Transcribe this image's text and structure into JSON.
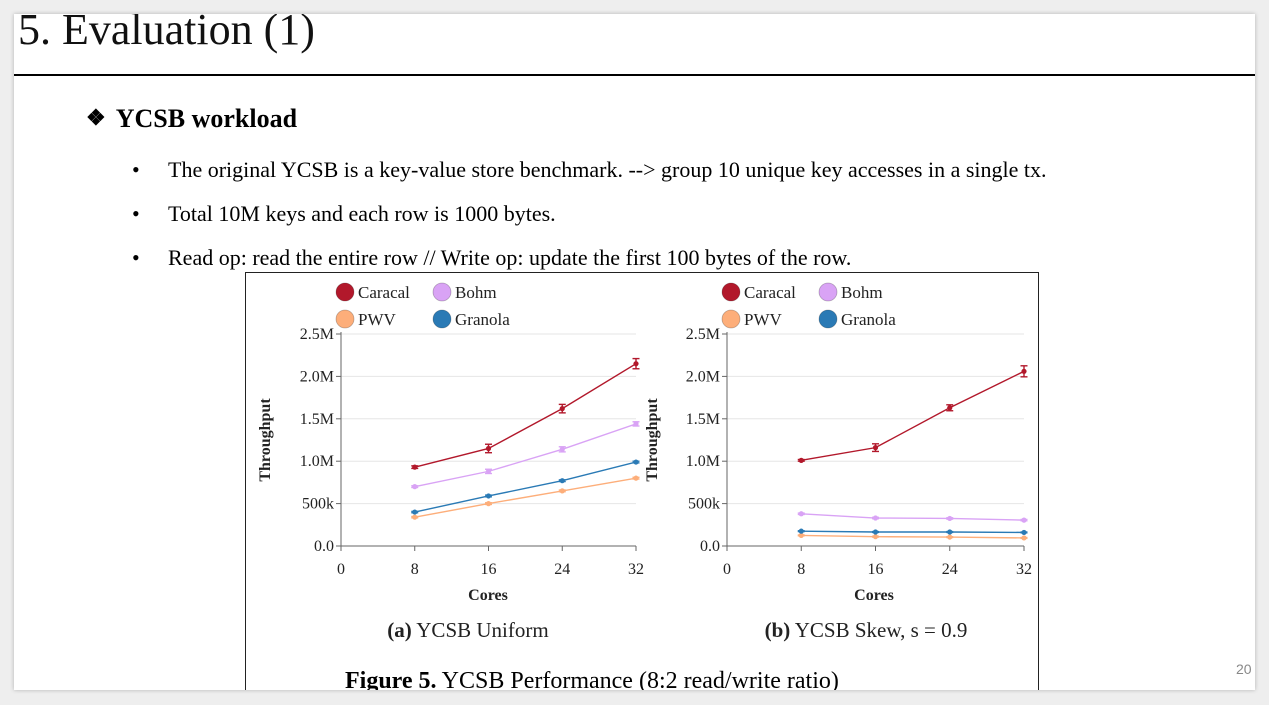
{
  "slide": {
    "title": "5. Evaluation (1)",
    "section": "YCSB workload",
    "section_icon": "diamond-bullet-icon",
    "bullets": [
      "The original YCSB is a key-value store benchmark. --> group 10 unique key accesses in a single tx.",
      "Total 10M keys and each row is 1000 bytes.",
      "Read op: read the entire row // Write op: update the first 100 bytes of the row."
    ],
    "page_number": "20"
  },
  "figure": {
    "caption_label": "Figure 5.",
    "caption_text": " YCSB Performance (8:2 read/write ratio)",
    "colors": {
      "Caracal": "#b2182b",
      "Bohm": "#d9a3f5",
      "PWV": "#fdae7a",
      "Granola": "#2a7ab5"
    }
  },
  "chart_data": [
    {
      "type": "line",
      "subtitle_label": "(a)",
      "subtitle_text": " YCSB Uniform",
      "xlabel": "Cores",
      "ylabel": "Throughput",
      "xlim": [
        0,
        32
      ],
      "ylim": [
        0,
        2500000
      ],
      "xticks": [
        0,
        8,
        16,
        24,
        32
      ],
      "xtick_labels": [
        "0",
        "8",
        "16",
        "24",
        "32"
      ],
      "yticks": [
        0,
        500000,
        1000000,
        1500000,
        2000000,
        2500000
      ],
      "ytick_labels": [
        "0.0",
        "500k",
        "1.0M",
        "1.5M",
        "2.0M",
        "2.5M"
      ],
      "legend": [
        "Caracal",
        "Bohm",
        "PWV",
        "Granola"
      ],
      "x": [
        8,
        16,
        24,
        32
      ],
      "series": [
        {
          "name": "Caracal",
          "values": [
            930000,
            1150000,
            1620000,
            2150000
          ],
          "errors": [
            15000,
            50000,
            50000,
            60000
          ]
        },
        {
          "name": "Bohm",
          "values": [
            700000,
            880000,
            1140000,
            1440000
          ],
          "errors": [
            10000,
            25000,
            30000,
            25000
          ]
        },
        {
          "name": "PWV",
          "values": [
            340000,
            500000,
            650000,
            800000
          ],
          "errors": [
            8000,
            10000,
            10000,
            10000
          ]
        },
        {
          "name": "Granola",
          "values": [
            400000,
            590000,
            770000,
            990000
          ],
          "errors": [
            8000,
            10000,
            10000,
            10000
          ]
        }
      ]
    },
    {
      "type": "line",
      "subtitle_label": "(b)",
      "subtitle_text": " YCSB Skew, s = 0.9",
      "xlabel": "Cores",
      "ylabel": "Throughput",
      "xlim": [
        0,
        32
      ],
      "ylim": [
        0,
        2500000
      ],
      "xticks": [
        0,
        8,
        16,
        24,
        32
      ],
      "xtick_labels": [
        "0",
        "8",
        "16",
        "24",
        "32"
      ],
      "yticks": [
        0,
        500000,
        1000000,
        1500000,
        2000000,
        2500000
      ],
      "ytick_labels": [
        "0.0",
        "500k",
        "1.0M",
        "1.5M",
        "2.0M",
        "2.5M"
      ],
      "legend": [
        "Caracal",
        "Bohm",
        "PWV",
        "Granola"
      ],
      "x": [
        8,
        16,
        24,
        32
      ],
      "series": [
        {
          "name": "Caracal",
          "values": [
            1010000,
            1160000,
            1630000,
            2060000
          ],
          "errors": [
            10000,
            45000,
            35000,
            65000
          ]
        },
        {
          "name": "Bohm",
          "values": [
            380000,
            330000,
            325000,
            305000
          ],
          "errors": [
            8000,
            8000,
            8000,
            8000
          ]
        },
        {
          "name": "PWV",
          "values": [
            125000,
            110000,
            105000,
            95000
          ],
          "errors": [
            5000,
            5000,
            5000,
            5000
          ]
        },
        {
          "name": "Granola",
          "values": [
            175000,
            165000,
            165000,
            160000
          ],
          "errors": [
            5000,
            5000,
            5000,
            5000
          ]
        }
      ]
    }
  ]
}
